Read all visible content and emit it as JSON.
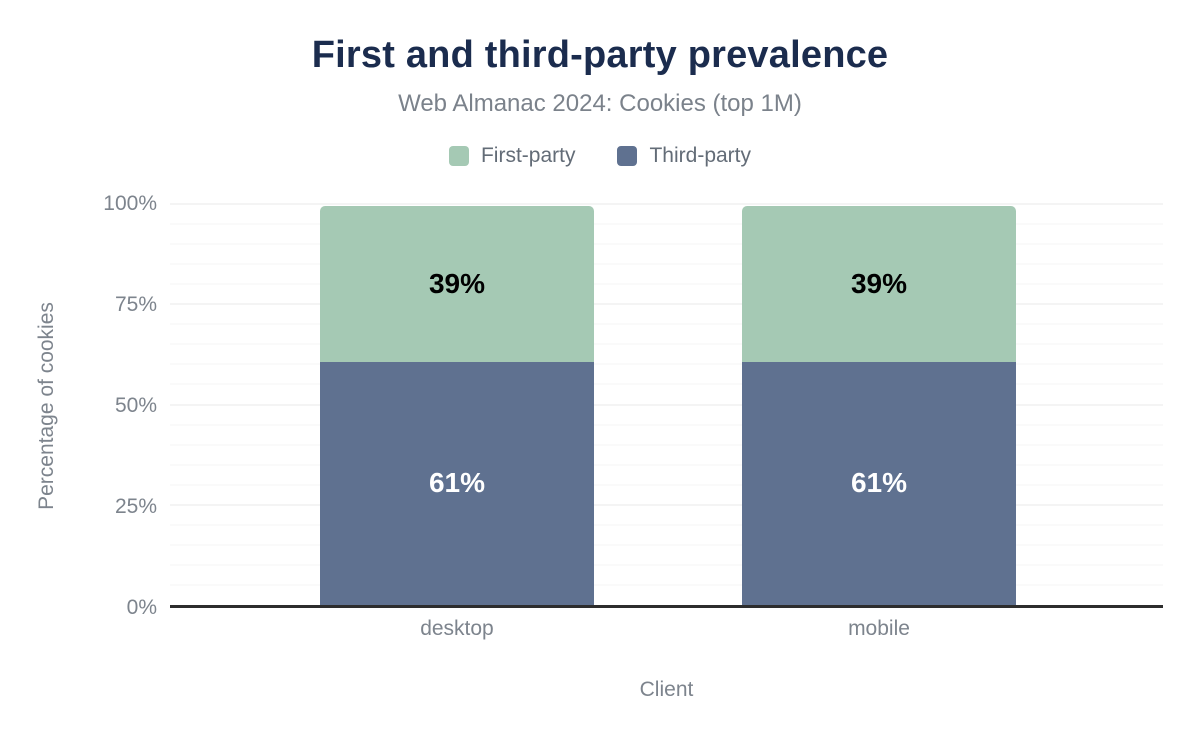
{
  "chart_data": {
    "type": "bar",
    "stacked": true,
    "title": "First and third-party prevalence",
    "subtitle": "Web Almanac 2024: Cookies (top 1M)",
    "xlabel": "Client",
    "ylabel": "Percentage of cookies",
    "categories": [
      "desktop",
      "mobile"
    ],
    "series": [
      {
        "name": "First-party",
        "color": "#a5c9b4",
        "values": [
          39,
          39
        ],
        "data_labels": [
          "39%",
          "39%"
        ],
        "data_label_color": "#000000"
      },
      {
        "name": "Third-party",
        "color": "#5f7190",
        "values": [
          61,
          61
        ],
        "data_labels": [
          "61%",
          "61%"
        ],
        "data_label_color": "#ffffff"
      }
    ],
    "stack_order_bottom_to_top": [
      "Third-party",
      "First-party"
    ],
    "ylim": [
      0,
      100
    ],
    "yticks": [
      {
        "value": 0,
        "label": "0%"
      },
      {
        "value": 25,
        "label": "25%"
      },
      {
        "value": 50,
        "label": "50%"
      },
      {
        "value": 75,
        "label": "75%"
      },
      {
        "value": 100,
        "label": "100%"
      }
    ],
    "grid": {
      "minor_step": 5,
      "major_step": 25
    },
    "legend_position": "top",
    "colors": {
      "title": "#1b2c4e",
      "subtitle": "#7b828b",
      "axis_text": "#7d848d",
      "legend_text": "#636c77",
      "axis_line": "#2d2d2d",
      "grid_minor": "#f5f5f5",
      "grid_major": "#e9e9e9",
      "background": "#ffffff"
    }
  }
}
